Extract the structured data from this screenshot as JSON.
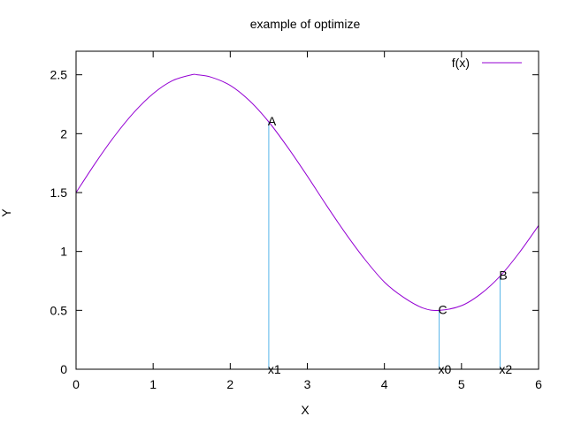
{
  "chart_data": {
    "type": "line",
    "title": "example of optimize",
    "xlabel": "X",
    "ylabel": "Y",
    "xlim": [
      0,
      6
    ],
    "ylim": [
      0,
      2.7
    ],
    "xticks": [
      0,
      1,
      2,
      3,
      4,
      5,
      6
    ],
    "yticks": [
      0,
      0.5,
      1,
      1.5,
      2,
      2.5
    ],
    "xtick_labels": [
      "0",
      "1",
      "2",
      "3",
      "4",
      "5",
      "6"
    ],
    "ytick_labels": [
      "0",
      "0.5",
      "1",
      "1.5",
      "2",
      "2.5"
    ],
    "grid": false,
    "legend_position": "top-right",
    "series": [
      {
        "name": "f(x)",
        "color": "#9400d3",
        "x": [
          0,
          0.25,
          0.5,
          0.75,
          1,
          1.25,
          1.5,
          1.57,
          1.75,
          2,
          2.25,
          2.5,
          2.75,
          3,
          3.25,
          3.5,
          3.75,
          4,
          4.25,
          4.5,
          4.71,
          5,
          5.25,
          5.5,
          5.75,
          6
        ],
        "y": [
          1.5,
          1.75,
          1.98,
          2.18,
          2.34,
          2.45,
          2.5,
          2.5,
          2.48,
          2.41,
          2.28,
          2.1,
          1.88,
          1.64,
          1.39,
          1.15,
          0.93,
          0.74,
          0.61,
          0.52,
          0.5,
          0.54,
          0.64,
          0.79,
          0.99,
          1.22
        ]
      }
    ],
    "markers": [
      {
        "label": "A",
        "x": 2.5,
        "y": 2.1,
        "x_label": "x1"
      },
      {
        "label": "C",
        "x": 4.71,
        "y": 0.5,
        "x_label": "x0"
      },
      {
        "label": "B",
        "x": 5.5,
        "y": 0.79,
        "x_label": "x2"
      }
    ],
    "marker_color": "#56b4e9"
  }
}
